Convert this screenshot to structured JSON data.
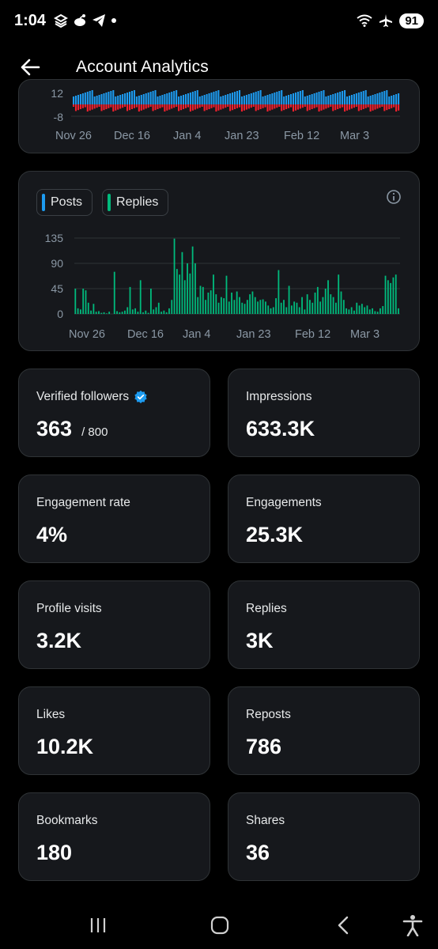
{
  "status_bar": {
    "time": "1:04",
    "icons_left": [
      "layers-icon",
      "reddit-icon",
      "telegram-icon",
      "dot-icon"
    ],
    "icons_right": [
      "wifi-icon",
      "airplane-icon"
    ],
    "battery": "91"
  },
  "header": {
    "title": "Account Analytics",
    "back_icon": "arrow-left-icon"
  },
  "chart_top": {
    "type": "bar",
    "y_tick_labels": [
      "12",
      "-8"
    ],
    "x_tick_labels": [
      "Nov 26",
      "Dec 16",
      "Jan 4",
      "Jan 23",
      "Feb 12",
      "Mar 3"
    ],
    "colors": {
      "positive": "#1d9bf0",
      "negative": "#f4212e"
    }
  },
  "chart_data": {
    "type": "bar",
    "legend": [
      {
        "name": "Posts",
        "color": "#1d9bf0"
      },
      {
        "name": "Replies",
        "color": "#00ba7c"
      }
    ],
    "x_tick_labels": [
      "Nov 26",
      "Dec 16",
      "Jan 4",
      "Jan 23",
      "Feb 12",
      "Mar 3"
    ],
    "y_tick_labels": [
      "135",
      "90",
      "45",
      "0"
    ],
    "ylim": [
      0,
      135
    ],
    "series": [
      {
        "name": "Replies",
        "values": [
          45,
          10,
          8,
          45,
          42,
          20,
          6,
          18,
          4,
          5,
          2,
          3,
          1,
          4,
          0,
          75,
          5,
          3,
          4,
          6,
          12,
          48,
          8,
          10,
          4,
          60,
          3,
          6,
          2,
          45,
          8,
          12,
          20,
          4,
          6,
          3,
          10,
          25,
          134,
          80,
          70,
          110,
          60,
          90,
          72,
          120,
          90,
          30,
          50,
          48,
          25,
          38,
          42,
          70,
          35,
          20,
          30,
          28,
          68,
          22,
          38,
          25,
          40,
          30,
          20,
          18,
          25,
          35,
          40,
          30,
          22,
          25,
          26,
          22,
          15,
          10,
          12,
          28,
          78,
          20,
          25,
          12,
          50,
          15,
          22,
          20,
          12,
          30,
          8,
          35,
          25,
          20,
          38,
          48,
          22,
          30,
          45,
          60,
          35,
          30,
          20,
          70,
          40,
          25,
          10,
          8,
          12,
          6,
          20,
          15,
          18,
          12,
          15,
          8,
          10,
          5,
          4,
          10,
          14,
          68,
          60,
          55,
          65,
          70,
          10
        ]
      }
    ]
  },
  "stats": [
    {
      "label": "Verified followers",
      "value": "363",
      "suffix": "/ 800",
      "verified": true
    },
    {
      "label": "Impressions",
      "value": "633.3K"
    },
    {
      "label": "Engagement rate",
      "value": "4%"
    },
    {
      "label": "Engagements",
      "value": "25.3K"
    },
    {
      "label": "Profile visits",
      "value": "3.2K"
    },
    {
      "label": "Replies",
      "value": "3K"
    },
    {
      "label": "Likes",
      "value": "10.2K"
    },
    {
      "label": "Reposts",
      "value": "786"
    },
    {
      "label": "Bookmarks",
      "value": "180"
    },
    {
      "label": "Shares",
      "value": "36"
    }
  ],
  "nav_bar": {
    "icons": [
      "recent-apps-icon",
      "home-icon",
      "back-icon",
      "accessibility-icon"
    ]
  }
}
